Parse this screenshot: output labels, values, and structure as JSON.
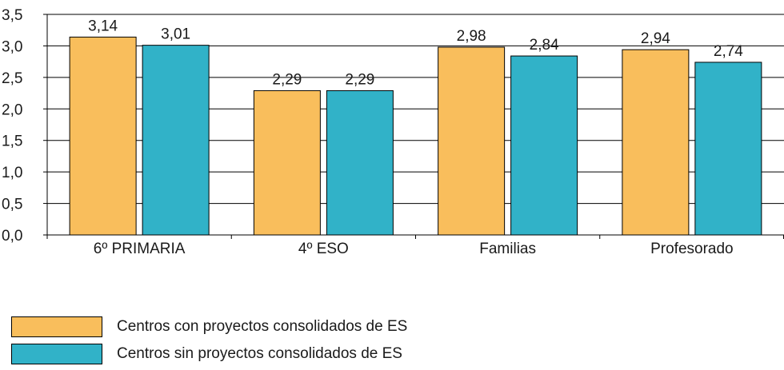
{
  "chart_data": {
    "type": "bar",
    "categories": [
      "6º PRIMARIA",
      "4º ESO",
      "Familias",
      "Profesorado"
    ],
    "series": [
      {
        "name": "Centros con proyectos consolidados de ES",
        "color": "#F9BE5C",
        "values": [
          3.14,
          2.29,
          2.98,
          2.94
        ],
        "labels": [
          "3,14",
          "2,29",
          "2,98",
          "2,94"
        ]
      },
      {
        "name": "Centros sin proyectos consolidados de ES",
        "color": "#31B2C8",
        "values": [
          3.01,
          2.29,
          2.84,
          2.74
        ],
        "labels": [
          "3,01",
          "2,29",
          "2,84",
          "2,74"
        ]
      }
    ],
    "yticks": [
      0,
      0.5,
      1.0,
      1.5,
      2.0,
      2.5,
      3.0,
      3.5
    ],
    "ytick_labels": [
      "0,0",
      "0,5",
      "1,0",
      "1,5",
      "2,0",
      "2,5",
      "3,0",
      "3,5"
    ],
    "ylim": [
      0,
      3.5
    ],
    "grid": true,
    "legend_position": "bottom-left"
  }
}
